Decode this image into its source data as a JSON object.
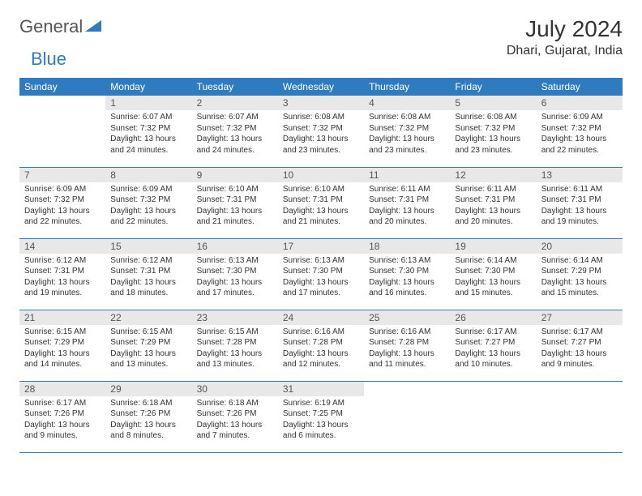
{
  "brand": {
    "part1": "General",
    "part2": "Blue"
  },
  "title": "July 2024",
  "location": "Dhari, Gujarat, India",
  "colors": {
    "header_bg": "#2f7bbf",
    "header_fg": "#ffffff",
    "daynum_bg": "#e8e8e8",
    "row_border": "#2f7bbf",
    "text": "#333333",
    "background": "#ffffff"
  },
  "typography": {
    "title_fontsize": 28,
    "location_fontsize": 16,
    "dayheader_fontsize": 12,
    "cell_fontsize": 10
  },
  "day_headers": [
    "Sunday",
    "Monday",
    "Tuesday",
    "Wednesday",
    "Thursday",
    "Friday",
    "Saturday"
  ],
  "weeks": [
    [
      {
        "n": "",
        "sr": "",
        "ss": "",
        "dl": ""
      },
      {
        "n": "1",
        "sr": "Sunrise: 6:07 AM",
        "ss": "Sunset: 7:32 PM",
        "dl": "Daylight: 13 hours and 24 minutes."
      },
      {
        "n": "2",
        "sr": "Sunrise: 6:07 AM",
        "ss": "Sunset: 7:32 PM",
        "dl": "Daylight: 13 hours and 24 minutes."
      },
      {
        "n": "3",
        "sr": "Sunrise: 6:08 AM",
        "ss": "Sunset: 7:32 PM",
        "dl": "Daylight: 13 hours and 23 minutes."
      },
      {
        "n": "4",
        "sr": "Sunrise: 6:08 AM",
        "ss": "Sunset: 7:32 PM",
        "dl": "Daylight: 13 hours and 23 minutes."
      },
      {
        "n": "5",
        "sr": "Sunrise: 6:08 AM",
        "ss": "Sunset: 7:32 PM",
        "dl": "Daylight: 13 hours and 23 minutes."
      },
      {
        "n": "6",
        "sr": "Sunrise: 6:09 AM",
        "ss": "Sunset: 7:32 PM",
        "dl": "Daylight: 13 hours and 22 minutes."
      }
    ],
    [
      {
        "n": "7",
        "sr": "Sunrise: 6:09 AM",
        "ss": "Sunset: 7:32 PM",
        "dl": "Daylight: 13 hours and 22 minutes."
      },
      {
        "n": "8",
        "sr": "Sunrise: 6:09 AM",
        "ss": "Sunset: 7:32 PM",
        "dl": "Daylight: 13 hours and 22 minutes."
      },
      {
        "n": "9",
        "sr": "Sunrise: 6:10 AM",
        "ss": "Sunset: 7:31 PM",
        "dl": "Daylight: 13 hours and 21 minutes."
      },
      {
        "n": "10",
        "sr": "Sunrise: 6:10 AM",
        "ss": "Sunset: 7:31 PM",
        "dl": "Daylight: 13 hours and 21 minutes."
      },
      {
        "n": "11",
        "sr": "Sunrise: 6:11 AM",
        "ss": "Sunset: 7:31 PM",
        "dl": "Daylight: 13 hours and 20 minutes."
      },
      {
        "n": "12",
        "sr": "Sunrise: 6:11 AM",
        "ss": "Sunset: 7:31 PM",
        "dl": "Daylight: 13 hours and 20 minutes."
      },
      {
        "n": "13",
        "sr": "Sunrise: 6:11 AM",
        "ss": "Sunset: 7:31 PM",
        "dl": "Daylight: 13 hours and 19 minutes."
      }
    ],
    [
      {
        "n": "14",
        "sr": "Sunrise: 6:12 AM",
        "ss": "Sunset: 7:31 PM",
        "dl": "Daylight: 13 hours and 19 minutes."
      },
      {
        "n": "15",
        "sr": "Sunrise: 6:12 AM",
        "ss": "Sunset: 7:31 PM",
        "dl": "Daylight: 13 hours and 18 minutes."
      },
      {
        "n": "16",
        "sr": "Sunrise: 6:13 AM",
        "ss": "Sunset: 7:30 PM",
        "dl": "Daylight: 13 hours and 17 minutes."
      },
      {
        "n": "17",
        "sr": "Sunrise: 6:13 AM",
        "ss": "Sunset: 7:30 PM",
        "dl": "Daylight: 13 hours and 17 minutes."
      },
      {
        "n": "18",
        "sr": "Sunrise: 6:13 AM",
        "ss": "Sunset: 7:30 PM",
        "dl": "Daylight: 13 hours and 16 minutes."
      },
      {
        "n": "19",
        "sr": "Sunrise: 6:14 AM",
        "ss": "Sunset: 7:30 PM",
        "dl": "Daylight: 13 hours and 15 minutes."
      },
      {
        "n": "20",
        "sr": "Sunrise: 6:14 AM",
        "ss": "Sunset: 7:29 PM",
        "dl": "Daylight: 13 hours and 15 minutes."
      }
    ],
    [
      {
        "n": "21",
        "sr": "Sunrise: 6:15 AM",
        "ss": "Sunset: 7:29 PM",
        "dl": "Daylight: 13 hours and 14 minutes."
      },
      {
        "n": "22",
        "sr": "Sunrise: 6:15 AM",
        "ss": "Sunset: 7:29 PM",
        "dl": "Daylight: 13 hours and 13 minutes."
      },
      {
        "n": "23",
        "sr": "Sunrise: 6:15 AM",
        "ss": "Sunset: 7:28 PM",
        "dl": "Daylight: 13 hours and 13 minutes."
      },
      {
        "n": "24",
        "sr": "Sunrise: 6:16 AM",
        "ss": "Sunset: 7:28 PM",
        "dl": "Daylight: 13 hours and 12 minutes."
      },
      {
        "n": "25",
        "sr": "Sunrise: 6:16 AM",
        "ss": "Sunset: 7:28 PM",
        "dl": "Daylight: 13 hours and 11 minutes."
      },
      {
        "n": "26",
        "sr": "Sunrise: 6:17 AM",
        "ss": "Sunset: 7:27 PM",
        "dl": "Daylight: 13 hours and 10 minutes."
      },
      {
        "n": "27",
        "sr": "Sunrise: 6:17 AM",
        "ss": "Sunset: 7:27 PM",
        "dl": "Daylight: 13 hours and 9 minutes."
      }
    ],
    [
      {
        "n": "28",
        "sr": "Sunrise: 6:17 AM",
        "ss": "Sunset: 7:26 PM",
        "dl": "Daylight: 13 hours and 9 minutes."
      },
      {
        "n": "29",
        "sr": "Sunrise: 6:18 AM",
        "ss": "Sunset: 7:26 PM",
        "dl": "Daylight: 13 hours and 8 minutes."
      },
      {
        "n": "30",
        "sr": "Sunrise: 6:18 AM",
        "ss": "Sunset: 7:26 PM",
        "dl": "Daylight: 13 hours and 7 minutes."
      },
      {
        "n": "31",
        "sr": "Sunrise: 6:19 AM",
        "ss": "Sunset: 7:25 PM",
        "dl": "Daylight: 13 hours and 6 minutes."
      },
      {
        "n": "",
        "sr": "",
        "ss": "",
        "dl": ""
      },
      {
        "n": "",
        "sr": "",
        "ss": "",
        "dl": ""
      },
      {
        "n": "",
        "sr": "",
        "ss": "",
        "dl": ""
      }
    ]
  ]
}
